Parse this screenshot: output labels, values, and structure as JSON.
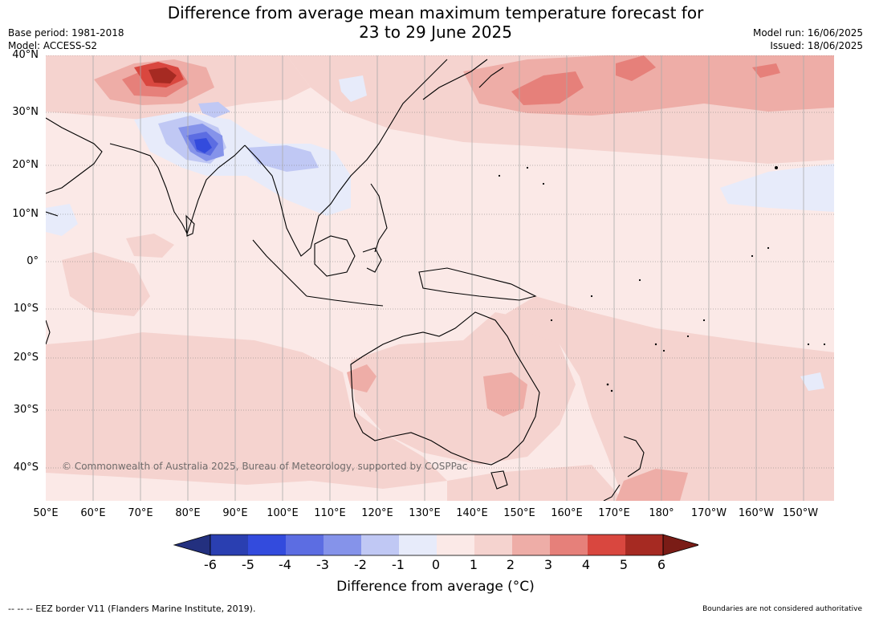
{
  "title": {
    "line1": "Difference from average mean maximum temperature forecast for",
    "line2": "23 to 29 June 2025"
  },
  "meta": {
    "base_period": "Base period: 1981-2018",
    "model": "Model: ACCESS-S2",
    "model_run": "Model run: 16/06/2025",
    "issued": "Issued: 18/06/2025"
  },
  "map": {
    "lat_labels": [
      "40°N",
      "30°N",
      "20°N",
      "10°N",
      "0°",
      "10°S",
      "20°S",
      "30°S",
      "40°S"
    ],
    "lon_labels": [
      "50°E",
      "60°E",
      "70°E",
      "80°E",
      "90°E",
      "100°E",
      "110°E",
      "120°E",
      "130°E",
      "140°E",
      "150°E",
      "160°E",
      "170°E",
      "180°",
      "170°W",
      "160°W",
      "150°W"
    ],
    "copyright": "© Commonwealth of Australia 2025, Bureau of Meteorology, supported by COSPPac",
    "colors": {
      "background_anomaly_0_1": "#fbe9e7",
      "anomaly_1_2": "#f5d3cf",
      "anomaly_2_3": "#eeada7",
      "anomaly_3_4": "#e6807a",
      "anomaly_4_5": "#d9473f",
      "anomaly_5_6": "#a62a22",
      "anomaly_m1_0": "#e7ebfa",
      "anomaly_m2_m1": "#c0c8f4",
      "anomaly_m3_m2": "#8593ea",
      "anomaly_m4_m3": "#5c6de2",
      "anomaly_m5_m4": "#334bdd"
    }
  },
  "colorbar": {
    "ticks": [
      "-6",
      "-5",
      "-4",
      "-3",
      "-2",
      "-1",
      "0",
      "1",
      "2",
      "3",
      "4",
      "5",
      "6"
    ],
    "colors": [
      "#23307f",
      "#2a3fb1",
      "#334bdd",
      "#5c6de2",
      "#8593ea",
      "#c0c8f4",
      "#e7ebfa",
      "#fbe9e7",
      "#f5d3cf",
      "#eeada7",
      "#e6807a",
      "#d9473f",
      "#a62a22",
      "#7a1c16"
    ],
    "label": "Difference from average (°C)"
  },
  "footer": {
    "eez": "--  --  -- EEZ border V11 (Flanders Marine Institute, 2019).",
    "disclaimer": "Boundaries are not considered authoritative"
  }
}
